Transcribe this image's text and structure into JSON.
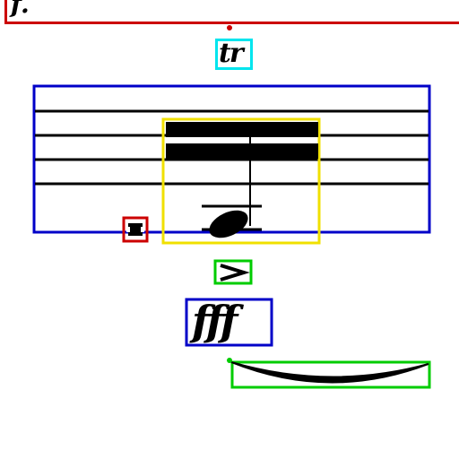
{
  "texts": {
    "trill": "tr",
    "dynamic": "fff",
    "top_partial": "f."
  },
  "colors": {
    "red": "#cc0000",
    "cyan": "#00e5ee",
    "blue": "#0000c8",
    "yellow": "#f0e000",
    "green": "#00cc00",
    "ink": "#000000"
  },
  "icons": [
    "trill-symbol",
    "accent-symbol",
    "half-note",
    "beam",
    "slur",
    "breve-rest",
    "fortississimo-dynamic"
  ]
}
